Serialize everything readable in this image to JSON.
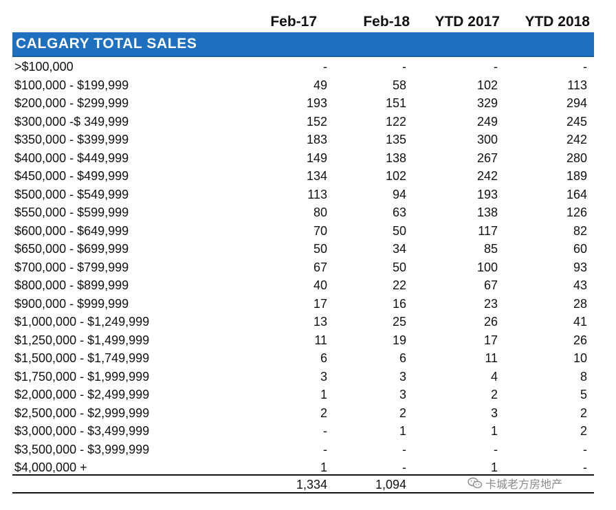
{
  "columns": {
    "feb17": "Feb-17",
    "feb18": "Feb-18",
    "ytd2017": "YTD 2017",
    "ytd2018": "YTD 2018"
  },
  "section_title": "CALGARY TOTAL SALES",
  "rows": [
    {
      "range": ">$100,000",
      "feb17": "-",
      "feb18": "-",
      "ytd2017": "-",
      "ytd2018": "-"
    },
    {
      "range": "$100,000 - $199,999",
      "feb17": "49",
      "feb18": "58",
      "ytd2017": "102",
      "ytd2018": "113"
    },
    {
      "range": "$200,000 - $299,999",
      "feb17": "193",
      "feb18": "151",
      "ytd2017": "329",
      "ytd2018": "294"
    },
    {
      "range": "$300,000 -$ 349,999",
      "feb17": "152",
      "feb18": "122",
      "ytd2017": "249",
      "ytd2018": "245"
    },
    {
      "range": "$350,000 - $399,999",
      "feb17": "183",
      "feb18": "135",
      "ytd2017": "300",
      "ytd2018": "242"
    },
    {
      "range": "$400,000 - $449,999",
      "feb17": "149",
      "feb18": "138",
      "ytd2017": "267",
      "ytd2018": "280"
    },
    {
      "range": "$450,000 - $499,999",
      "feb17": "134",
      "feb18": "102",
      "ytd2017": "242",
      "ytd2018": "189"
    },
    {
      "range": "$500,000 - $549,999",
      "feb17": "113",
      "feb18": "94",
      "ytd2017": "193",
      "ytd2018": "164"
    },
    {
      "range": "$550,000 - $599,999",
      "feb17": "80",
      "feb18": "63",
      "ytd2017": "138",
      "ytd2018": "126"
    },
    {
      "range": "$600,000 - $649,999",
      "feb17": "70",
      "feb18": "50",
      "ytd2017": "117",
      "ytd2018": "82"
    },
    {
      "range": "$650,000 - $699,999",
      "feb17": "50",
      "feb18": "34",
      "ytd2017": "85",
      "ytd2018": "60"
    },
    {
      "range": "$700,000 - $799,999",
      "feb17": "67",
      "feb18": "50",
      "ytd2017": "100",
      "ytd2018": "93"
    },
    {
      "range": "$800,000 - $899,999",
      "feb17": "40",
      "feb18": "22",
      "ytd2017": "67",
      "ytd2018": "43"
    },
    {
      "range": "$900,000 - $999,999",
      "feb17": "17",
      "feb18": "16",
      "ytd2017": "23",
      "ytd2018": "28"
    },
    {
      "range": "$1,000,000 - $1,249,999",
      "feb17": "13",
      "feb18": "25",
      "ytd2017": "26",
      "ytd2018": "41"
    },
    {
      "range": "$1,250,000 - $1,499,999",
      "feb17": "11",
      "feb18": "19",
      "ytd2017": "17",
      "ytd2018": "26"
    },
    {
      "range": "$1,500,000 - $1,749,999",
      "feb17": "6",
      "feb18": "6",
      "ytd2017": "11",
      "ytd2018": "10"
    },
    {
      "range": "$1,750,000 - $1,999,999",
      "feb17": "3",
      "feb18": "3",
      "ytd2017": "4",
      "ytd2018": "8"
    },
    {
      "range": "$2,000,000 - $2,499,999",
      "feb17": "1",
      "feb18": "3",
      "ytd2017": "2",
      "ytd2018": "5"
    },
    {
      "range": "$2,500,000 - $2,999,999",
      "feb17": "2",
      "feb18": "2",
      "ytd2017": "3",
      "ytd2018": "2"
    },
    {
      "range": "$3,000,000 - $3,499,999",
      "feb17": "-",
      "feb18": "1",
      "ytd2017": "1",
      "ytd2018": "2"
    },
    {
      "range": "$3,500,000 - $3,999,999",
      "feb17": "-",
      "feb18": "-",
      "ytd2017": "-",
      "ytd2018": "-"
    },
    {
      "range": "$4,000,000 +",
      "feb17": "1",
      "feb18": "-",
      "ytd2017": "1",
      "ytd2018": "-"
    }
  ],
  "totals": {
    "feb17": "1,334",
    "feb18": "1,094"
  },
  "watermark": {
    "text": "卡城老方房地产",
    "icon": "wechat-icon"
  }
}
